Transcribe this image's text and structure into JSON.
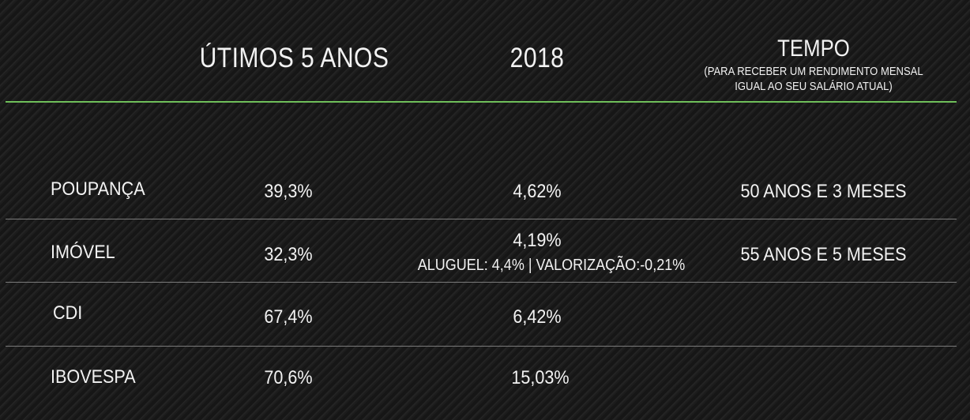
{
  "header": {
    "col_5years": "ÚTIMOS 5 ANOS",
    "col_2018": "2018",
    "col_tempo": "TEMPO",
    "col_tempo_sub_line1": "(PARA RECEBER UM RENDIMENTO MENSAL",
    "col_tempo_sub_line2": "IGUAL AO SEU SALÁRIO ATUAL)"
  },
  "colors": {
    "accent_rule": "#6fbf5a",
    "row_rule": "#7a7a7a",
    "text": "#f2f2f2"
  },
  "rows": [
    {
      "name": "POUPANÇA",
      "five_years": "39,3%",
      "year_2018": "4,62%",
      "year_2018_detail": "",
      "tempo": "50 ANOS E 3 MESES"
    },
    {
      "name": "IMÓVEL",
      "five_years": "32,3%",
      "year_2018": "4,19%",
      "year_2018_detail": "ALUGUEL: 4,4% | VALORIZAÇÃO:-0,21%",
      "tempo": "55 ANOS E 5 MESES"
    },
    {
      "name": "CDI",
      "five_years": "67,4%",
      "year_2018": "6,42%",
      "year_2018_detail": "",
      "tempo": ""
    },
    {
      "name": "IBOVESPA",
      "five_years": "70,6%",
      "year_2018": "15,03%",
      "year_2018_detail": "",
      "tempo": ""
    }
  ]
}
